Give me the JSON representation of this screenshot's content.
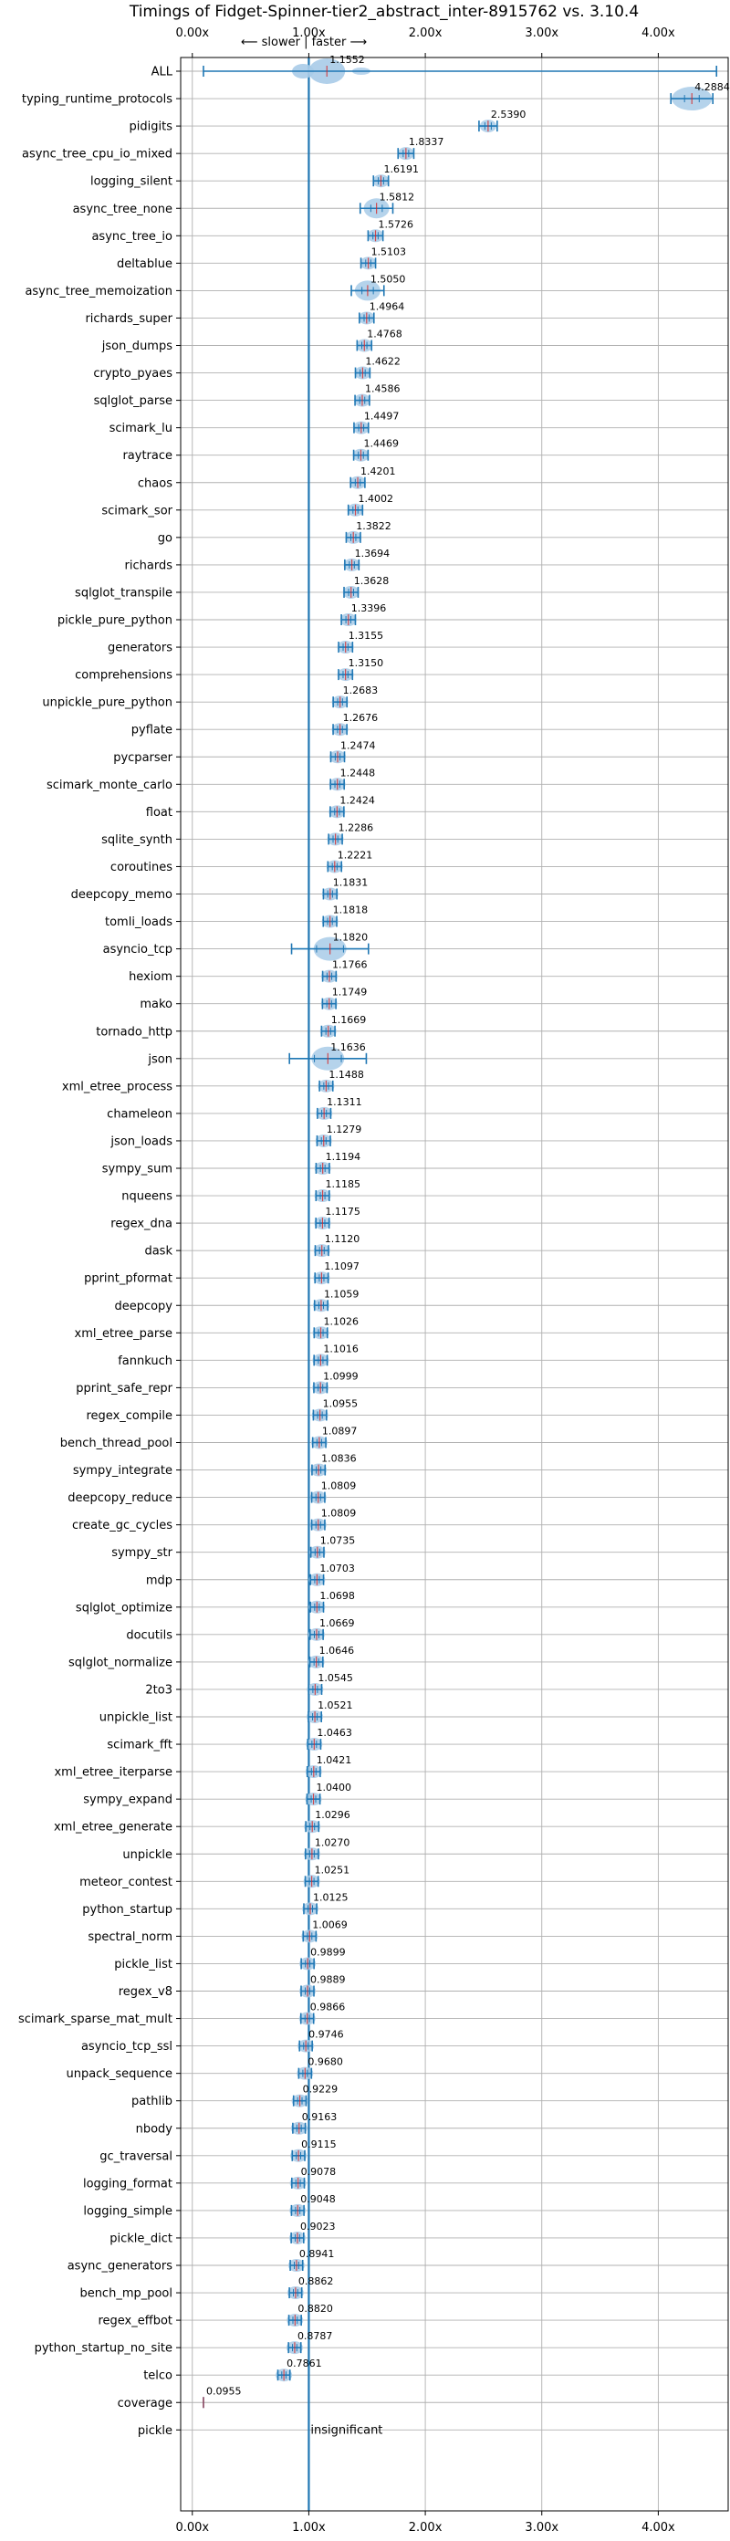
{
  "chart_data": {
    "type": "violin",
    "title": "Timings of Fidget-Spinner-tier2_abstract_inter-8915762 vs. 3.10.4",
    "direction_annotation": "⟵ slower | faster ⟶",
    "insignificant_label": "insignificant",
    "x_ticks": [
      "0.00x",
      "1.00x",
      "2.00x",
      "3.00x",
      "4.00x"
    ],
    "x_tick_values": [
      0,
      1,
      2,
      3,
      4
    ],
    "xlim": [
      -0.1,
      4.6
    ],
    "grid": true,
    "colors": {
      "violin": "#a8cbe8",
      "whisker": "#1f77b4",
      "median": "#d62728",
      "reference_line": "#1f77b4"
    },
    "benchmarks": [
      {
        "name": "ALL",
        "value": 1.1552,
        "label": "1.1552"
      },
      {
        "name": "typing_runtime_protocols",
        "value": 4.2884,
        "label": "4.2884"
      },
      {
        "name": "pidigits",
        "value": 2.539,
        "label": "2.5390"
      },
      {
        "name": "async_tree_cpu_io_mixed",
        "value": 1.8337,
        "label": "1.8337"
      },
      {
        "name": "logging_silent",
        "value": 1.6191,
        "label": "1.6191"
      },
      {
        "name": "async_tree_none",
        "value": 1.5812,
        "label": "1.5812"
      },
      {
        "name": "async_tree_io",
        "value": 1.5726,
        "label": "1.5726"
      },
      {
        "name": "deltablue",
        "value": 1.5103,
        "label": "1.5103"
      },
      {
        "name": "async_tree_memoization",
        "value": 1.505,
        "label": "1.5050"
      },
      {
        "name": "richards_super",
        "value": 1.4964,
        "label": "1.4964"
      },
      {
        "name": "json_dumps",
        "value": 1.4768,
        "label": "1.4768"
      },
      {
        "name": "crypto_pyaes",
        "value": 1.4622,
        "label": "1.4622"
      },
      {
        "name": "sqlglot_parse",
        "value": 1.4586,
        "label": "1.4586"
      },
      {
        "name": "scimark_lu",
        "value": 1.4497,
        "label": "1.4497"
      },
      {
        "name": "raytrace",
        "value": 1.4469,
        "label": "1.4469"
      },
      {
        "name": "chaos",
        "value": 1.4201,
        "label": "1.4201"
      },
      {
        "name": "scimark_sor",
        "value": 1.4002,
        "label": "1.4002"
      },
      {
        "name": "go",
        "value": 1.3822,
        "label": "1.3822"
      },
      {
        "name": "richards",
        "value": 1.3694,
        "label": "1.3694"
      },
      {
        "name": "sqlglot_transpile",
        "value": 1.3628,
        "label": "1.3628"
      },
      {
        "name": "pickle_pure_python",
        "value": 1.3396,
        "label": "1.3396"
      },
      {
        "name": "generators",
        "value": 1.3155,
        "label": "1.3155"
      },
      {
        "name": "comprehensions",
        "value": 1.315,
        "label": "1.3150"
      },
      {
        "name": "unpickle_pure_python",
        "value": 1.2683,
        "label": "1.2683"
      },
      {
        "name": "pyflate",
        "value": 1.2676,
        "label": "1.2676"
      },
      {
        "name": "pycparser",
        "value": 1.2474,
        "label": "1.2474"
      },
      {
        "name": "scimark_monte_carlo",
        "value": 1.2448,
        "label": "1.2448"
      },
      {
        "name": "float",
        "value": 1.2424,
        "label": "1.2424"
      },
      {
        "name": "sqlite_synth",
        "value": 1.2286,
        "label": "1.2286"
      },
      {
        "name": "coroutines",
        "value": 1.2221,
        "label": "1.2221"
      },
      {
        "name": "deepcopy_memo",
        "value": 1.1831,
        "label": "1.1831"
      },
      {
        "name": "tomli_loads",
        "value": 1.1818,
        "label": "1.1818"
      },
      {
        "name": "asyncio_tcp",
        "value": 1.182,
        "label": "1.1820"
      },
      {
        "name": "hexiom",
        "value": 1.1766,
        "label": "1.1766"
      },
      {
        "name": "mako",
        "value": 1.1749,
        "label": "1.1749"
      },
      {
        "name": "tornado_http",
        "value": 1.1669,
        "label": "1.1669"
      },
      {
        "name": "json",
        "value": 1.1636,
        "label": "1.1636"
      },
      {
        "name": "xml_etree_process",
        "value": 1.1488,
        "label": "1.1488"
      },
      {
        "name": "chameleon",
        "value": 1.1311,
        "label": "1.1311"
      },
      {
        "name": "json_loads",
        "value": 1.1279,
        "label": "1.1279"
      },
      {
        "name": "sympy_sum",
        "value": 1.1194,
        "label": "1.1194"
      },
      {
        "name": "nqueens",
        "value": 1.1185,
        "label": "1.1185"
      },
      {
        "name": "regex_dna",
        "value": 1.1175,
        "label": "1.1175"
      },
      {
        "name": "dask",
        "value": 1.112,
        "label": "1.1120"
      },
      {
        "name": "pprint_pformat",
        "value": 1.1097,
        "label": "1.1097"
      },
      {
        "name": "deepcopy",
        "value": 1.1059,
        "label": "1.1059"
      },
      {
        "name": "xml_etree_parse",
        "value": 1.1026,
        "label": "1.1026"
      },
      {
        "name": "fannkuch",
        "value": 1.1016,
        "label": "1.1016"
      },
      {
        "name": "pprint_safe_repr",
        "value": 1.0999,
        "label": "1.0999"
      },
      {
        "name": "regex_compile",
        "value": 1.0955,
        "label": "1.0955"
      },
      {
        "name": "bench_thread_pool",
        "value": 1.0897,
        "label": "1.0897"
      },
      {
        "name": "sympy_integrate",
        "value": 1.0836,
        "label": "1.0836"
      },
      {
        "name": "deepcopy_reduce",
        "value": 1.0809,
        "label": "1.0809"
      },
      {
        "name": "create_gc_cycles",
        "value": 1.0809,
        "label": "1.0809"
      },
      {
        "name": "sympy_str",
        "value": 1.0735,
        "label": "1.0735"
      },
      {
        "name": "mdp",
        "value": 1.0703,
        "label": "1.0703"
      },
      {
        "name": "sqlglot_optimize",
        "value": 1.0698,
        "label": "1.0698"
      },
      {
        "name": "docutils",
        "value": 1.0669,
        "label": "1.0669"
      },
      {
        "name": "sqlglot_normalize",
        "value": 1.0646,
        "label": "1.0646"
      },
      {
        "name": "2to3",
        "value": 1.0545,
        "label": "1.0545"
      },
      {
        "name": "unpickle_list",
        "value": 1.0521,
        "label": "1.0521"
      },
      {
        "name": "scimark_fft",
        "value": 1.0463,
        "label": "1.0463"
      },
      {
        "name": "xml_etree_iterparse",
        "value": 1.0421,
        "label": "1.0421"
      },
      {
        "name": "sympy_expand",
        "value": 1.04,
        "label": "1.0400"
      },
      {
        "name": "xml_etree_generate",
        "value": 1.0296,
        "label": "1.0296"
      },
      {
        "name": "unpickle",
        "value": 1.027,
        "label": "1.0270"
      },
      {
        "name": "meteor_contest",
        "value": 1.0251,
        "label": "1.0251"
      },
      {
        "name": "python_startup",
        "value": 1.0125,
        "label": "1.0125"
      },
      {
        "name": "spectral_norm",
        "value": 1.0069,
        "label": "1.0069"
      },
      {
        "name": "pickle_list",
        "value": 0.9899,
        "label": "0.9899"
      },
      {
        "name": "regex_v8",
        "value": 0.9889,
        "label": "0.9889"
      },
      {
        "name": "scimark_sparse_mat_mult",
        "value": 0.9866,
        "label": "0.9866"
      },
      {
        "name": "asyncio_tcp_ssl",
        "value": 0.9746,
        "label": "0.9746"
      },
      {
        "name": "unpack_sequence",
        "value": 0.968,
        "label": "0.9680"
      },
      {
        "name": "pathlib",
        "value": 0.9229,
        "label": "0.9229"
      },
      {
        "name": "nbody",
        "value": 0.9163,
        "label": "0.9163"
      },
      {
        "name": "gc_traversal",
        "value": 0.9115,
        "label": "0.9115"
      },
      {
        "name": "logging_format",
        "value": 0.9078,
        "label": "0.9078"
      },
      {
        "name": "logging_simple",
        "value": 0.9048,
        "label": "0.9048"
      },
      {
        "name": "pickle_dict",
        "value": 0.9023,
        "label": "0.9023"
      },
      {
        "name": "async_generators",
        "value": 0.8941,
        "label": "0.8941"
      },
      {
        "name": "bench_mp_pool",
        "value": 0.8862,
        "label": "0.8862"
      },
      {
        "name": "regex_effbot",
        "value": 0.882,
        "label": "0.8820"
      },
      {
        "name": "python_startup_no_site",
        "value": 0.8787,
        "label": "0.8787"
      },
      {
        "name": "telco",
        "value": 0.7861,
        "label": "0.7861"
      },
      {
        "name": "coverage",
        "value": 0.0955,
        "label": "0.0955"
      },
      {
        "name": "pickle",
        "value": null,
        "label": ""
      }
    ]
  }
}
